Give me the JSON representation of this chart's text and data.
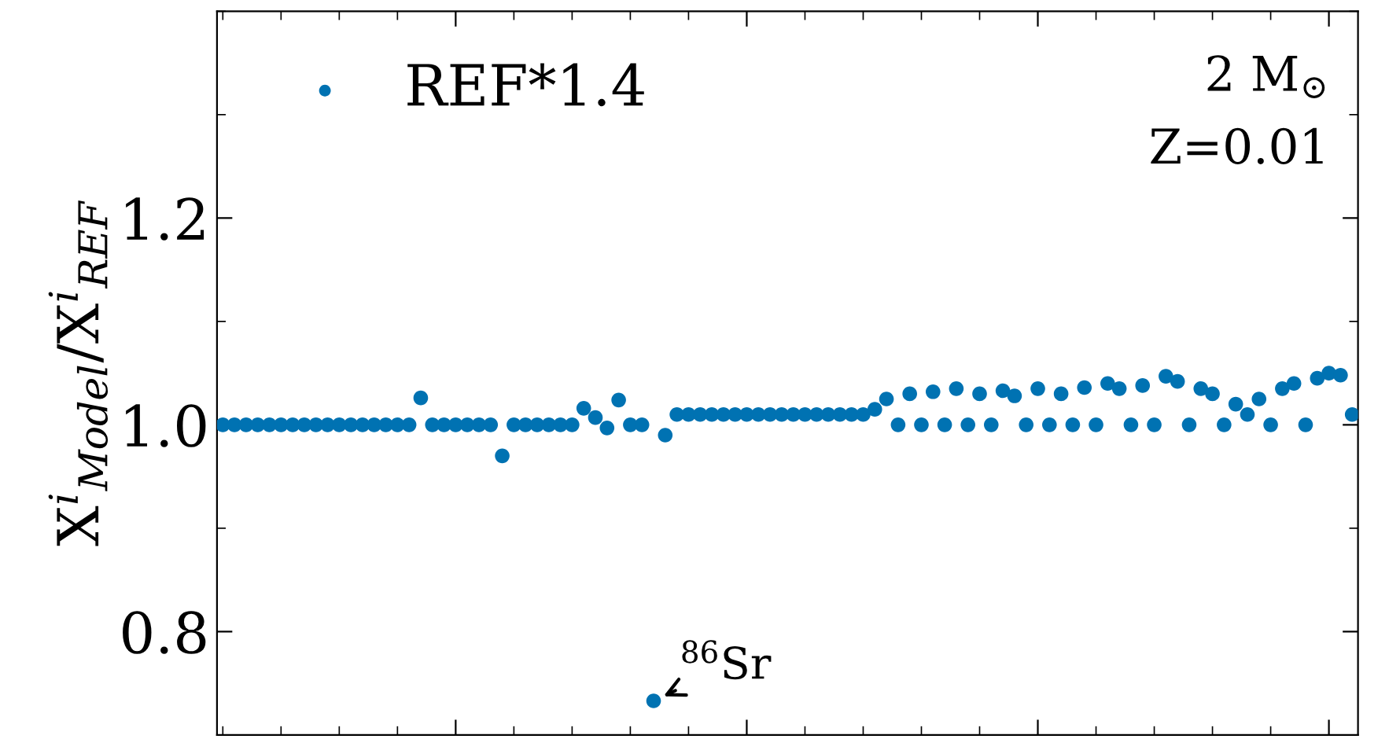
{
  "chart_data": {
    "type": "scatter",
    "ylabel": "X$^{i}$$_{Model}$/X$^{i}$$_{REF}$",
    "categories": [
      null,
      null,
      null,
      null,
      null,
      null,
      null,
      null,
      null,
      null,
      null,
      null,
      null,
      null,
      null,
      null,
      null,
      null,
      null,
      null,
      null,
      null,
      null,
      null,
      null,
      null,
      null,
      null,
      null,
      null,
      null,
      null,
      null,
      null,
      null,
      null,
      null,
      null,
      null,
      null,
      null,
      null,
      null,
      null,
      null,
      null,
      null,
      null,
      null,
      null,
      null,
      null,
      null,
      null,
      null,
      null,
      null,
      null,
      null,
      null,
      null,
      null,
      null,
      null,
      null,
      null,
      null,
      null,
      null,
      null,
      null,
      null,
      null,
      null,
      null,
      null,
      null,
      null,
      null,
      null,
      null,
      null,
      null,
      null,
      null,
      null,
      null,
      null,
      null,
      null,
      null,
      null,
      null,
      null,
      null,
      null,
      null,
      null
    ],
    "ylim": [
      0.7,
      1.4
    ],
    "yticks": [
      {
        "value": 0.8,
        "label": "0.8"
      },
      {
        "value": 1.0,
        "label": "1.0"
      },
      {
        "value": 1.2,
        "label": "1.2"
      }
    ],
    "legend": "top left",
    "marker": "circle",
    "grid": false,
    "annotations": [
      "$^{86}$Sr",
      "2 M$_{⊙}$",
      "Z=0.01"
    ],
    "series": [
      {
        "name": "REF*1.4",
        "color": "#0072b2",
        "values": [
          1.0,
          1.0,
          1.0,
          1.0,
          1.0,
          1.0,
          1.0,
          1.0,
          1.0,
          1.0,
          1.0,
          1.0,
          1.0,
          1.0,
          1.0,
          1.0,
          1.0,
          1.026,
          1.0,
          1.0,
          1.0,
          1.0,
          1.0,
          1.0,
          0.97,
          1.0,
          1.0,
          1.0,
          1.0,
          1.0,
          1.0,
          1.016,
          1.007,
          0.997,
          1.024,
          1.0,
          1.0,
          0.733,
          0.99,
          1.01,
          1.01,
          1.01,
          1.01,
          1.01,
          1.01,
          1.01,
          1.01,
          1.01,
          1.01,
          1.01,
          1.01,
          1.01,
          1.01,
          1.01,
          1.01,
          1.01,
          1.015,
          1.025,
          1.0,
          1.03,
          1.0,
          1.032,
          1.0,
          1.035,
          1.0,
          1.03,
          1.0,
          1.033,
          1.028,
          1.0,
          1.035,
          1.0,
          1.03,
          1.0,
          1.036,
          1.0,
          1.04,
          1.035,
          1.0,
          1.038,
          1.0,
          1.047,
          1.042,
          1.0,
          1.035,
          1.03,
          1.0,
          1.02,
          1.01,
          1.025,
          1.0,
          1.035,
          1.04,
          1.0,
          1.045,
          1.05,
          1.048,
          1.01
        ]
      }
    ]
  }
}
